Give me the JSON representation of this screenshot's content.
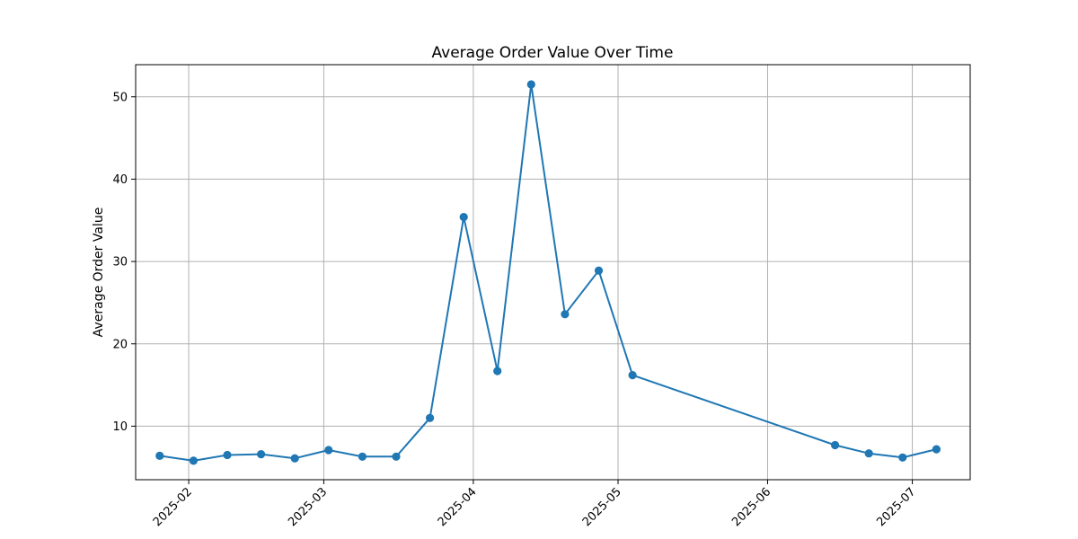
{
  "chart_data": {
    "type": "line",
    "title": "Average Order Value Over Time",
    "xlabel": "",
    "ylabel": "Average Order Value",
    "grid": true,
    "color": "#1f77b4",
    "xlim": [
      "2025-01-21",
      "2025-07-13"
    ],
    "ylim": [
      3.5,
      53.9
    ],
    "x_ticks": [
      "2025-02",
      "2025-03",
      "2025-04",
      "2025-05",
      "2025-06",
      "2025-07"
    ],
    "y_ticks": [
      10,
      20,
      30,
      40,
      50
    ],
    "series": [
      {
        "x": [
          "2025-01-26",
          "2025-02-02",
          "2025-02-09",
          "2025-02-16",
          "2025-02-23",
          "2025-03-02",
          "2025-03-09",
          "2025-03-16",
          "2025-03-23",
          "2025-03-30",
          "2025-04-06",
          "2025-04-13",
          "2025-04-20",
          "2025-04-27",
          "2025-05-04",
          "2025-06-15",
          "2025-06-22",
          "2025-06-29",
          "2025-07-06"
        ],
        "values": [
          6.4,
          5.8,
          6.5,
          6.6,
          6.1,
          7.1,
          6.3,
          6.3,
          11.0,
          35.4,
          16.7,
          51.5,
          23.6,
          28.9,
          16.2,
          7.7,
          6.7,
          6.2,
          7.2
        ]
      }
    ]
  }
}
